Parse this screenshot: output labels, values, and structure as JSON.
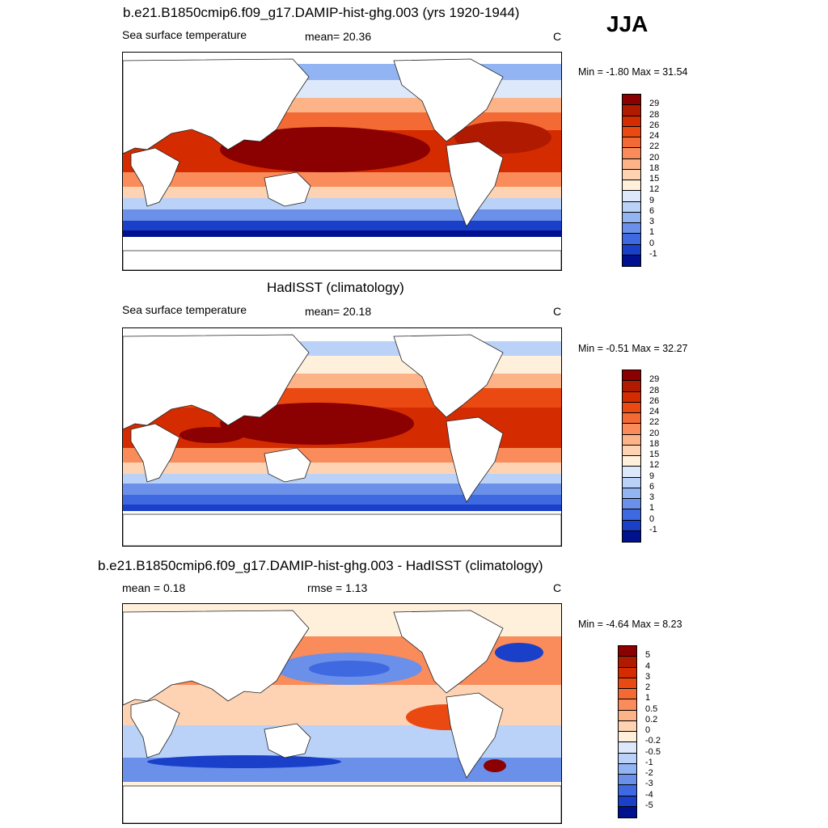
{
  "season": "JJA",
  "panels": [
    {
      "title": "b.e21.B1850cmip6.f09_g17.DAMIP-hist-ghg.003 (yrs 1920-1944)",
      "left_label": "Sea surface temperature",
      "center_label": "mean=  20.36",
      "unit": "C",
      "minmax": "Min =  -1.80 Max =  31.54",
      "colorbar": {
        "labels": [
          "29",
          "28",
          "26",
          "24",
          "22",
          "20",
          "18",
          "15",
          "12",
          "9",
          "6",
          "3",
          "1",
          "0",
          "-1"
        ],
        "colors": [
          "#8b0000",
          "#b01a00",
          "#d42c00",
          "#ea4a12",
          "#f46a34",
          "#f98c5a",
          "#fcb388",
          "#fdd3b4",
          "#fff0dc",
          "#dde9fb",
          "#bad2f7",
          "#92b4f2",
          "#6a90ea",
          "#3e69e0",
          "#1a3fc8",
          "#00118f"
        ]
      }
    },
    {
      "title": "HadISST (climatology)",
      "left_label": "Sea surface temperature",
      "center_label": "mean=  20.18",
      "unit": "C",
      "minmax": "Min =  -0.51 Max =  32.27",
      "colorbar": {
        "labels": [
          "29",
          "28",
          "26",
          "24",
          "22",
          "20",
          "18",
          "15",
          "12",
          "9",
          "6",
          "3",
          "1",
          "0",
          "-1"
        ],
        "colors": [
          "#8b0000",
          "#b01a00",
          "#d42c00",
          "#ea4a12",
          "#f46a34",
          "#f98c5a",
          "#fcb388",
          "#fdd3b4",
          "#fff0dc",
          "#dde9fb",
          "#bad2f7",
          "#92b4f2",
          "#6a90ea",
          "#3e69e0",
          "#1a3fc8",
          "#00118f"
        ]
      }
    },
    {
      "title": "b.e21.B1850cmip6.f09_g17.DAMIP-hist-ghg.003 - HadISST (climatology)",
      "left_label": "mean =   0.18",
      "center_label": "rmse =   1.13",
      "unit": "C",
      "minmax": "Min =  -4.64 Max =   8.23",
      "colorbar": {
        "labels": [
          "5",
          "4",
          "3",
          "2",
          "1",
          "0.5",
          "0.2",
          "0",
          "-0.2",
          "-0.5",
          "-1",
          "-2",
          "-3",
          "-4",
          "-5"
        ],
        "colors": [
          "#8b0000",
          "#b01a00",
          "#d42c00",
          "#ea4a12",
          "#f46a34",
          "#f98c5a",
          "#fcb388",
          "#fdd3b4",
          "#fff0dc",
          "#dde9fb",
          "#bad2f7",
          "#92b4f2",
          "#6a90ea",
          "#3e69e0",
          "#1a3fc8",
          "#00118f"
        ]
      }
    }
  ]
}
